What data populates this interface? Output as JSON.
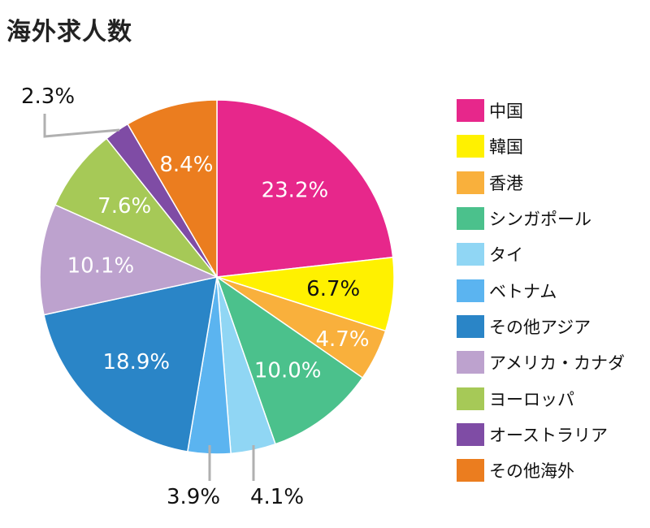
{
  "title": "海外求人数",
  "chart_data": {
    "type": "pie",
    "title": "海外求人数",
    "legend_position": "right",
    "start_angle_deg": 0,
    "direction": "clockwise",
    "categories": [
      "中国",
      "韓国",
      "香港",
      "シンガポール",
      "タイ",
      "ベトナム",
      "その他アジア",
      "アメリカ・カナダ",
      "ヨーロッパ",
      "オーストラリア",
      "その他海外"
    ],
    "values": [
      23.2,
      6.7,
      4.7,
      10.0,
      4.1,
      3.9,
      18.9,
      10.1,
      7.6,
      2.3,
      8.4
    ],
    "labels": [
      "23.2%",
      "6.7%",
      "4.7%",
      "10.0%",
      "4.1%",
      "3.9%",
      "18.9%",
      "10.1%",
      "7.6%",
      "2.3%",
      "8.4%"
    ],
    "colors": [
      "#E7278B",
      "#FFF100",
      "#F9B03C",
      "#4BC18C",
      "#90D6F4",
      "#5BB4F0",
      "#2A85C7",
      "#BDA2CE",
      "#A6C957",
      "#7F4CA5",
      "#EB7D1F"
    ],
    "label_colors": [
      "#ffffff",
      "#111111",
      "#ffffff",
      "#ffffff",
      "#111111",
      "#111111",
      "#ffffff",
      "#ffffff",
      "#ffffff",
      "#111111",
      "#ffffff"
    ],
    "outside_labels": [
      4,
      5,
      9
    ]
  }
}
